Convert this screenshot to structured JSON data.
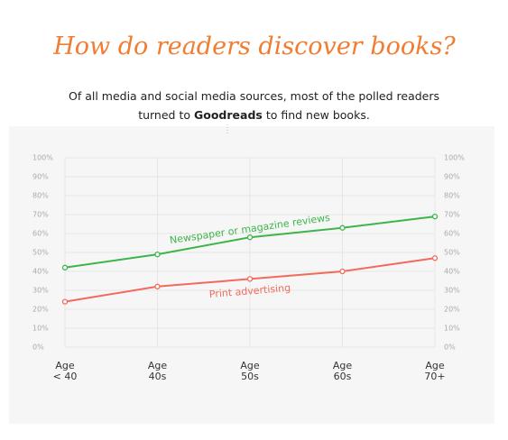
{
  "chart_data": {
    "type": "line",
    "title": "How do readers discover books?",
    "subtitle": [
      "Of all media and social media sources, most of the polled readers",
      "turned to ",
      "Goodreads",
      " to find new books."
    ],
    "categories": [
      "Age\n< 40",
      "Age\n40s",
      "Age\n50s",
      "Age\n60s",
      "Age\n70+"
    ],
    "series": [
      {
        "name": "Newspaper or magazine reviews",
        "color": "#3db54a",
        "values": [
          42,
          49,
          58,
          63,
          69
        ]
      },
      {
        "name": "Print advertising",
        "color": "#f26a5b",
        "values": [
          24,
          32,
          36,
          40,
          47
        ]
      }
    ],
    "ylim": [
      0,
      100
    ],
    "yticks": [
      {
        "value": 0,
        "label": "0%"
      },
      {
        "value": 10,
        "label": "10%"
      },
      {
        "value": 20,
        "label": "20%"
      },
      {
        "value": 30,
        "label": "30%"
      },
      {
        "value": 40,
        "label": "40%"
      },
      {
        "value": 50,
        "label": "50%"
      },
      {
        "value": 60,
        "label": "60%"
      },
      {
        "value": 70,
        "label": "70%"
      },
      {
        "value": 80,
        "label": "80%"
      },
      {
        "value": 90,
        "label": "90%"
      },
      {
        "value": 100,
        "label": "100%"
      }
    ],
    "grid": true
  }
}
